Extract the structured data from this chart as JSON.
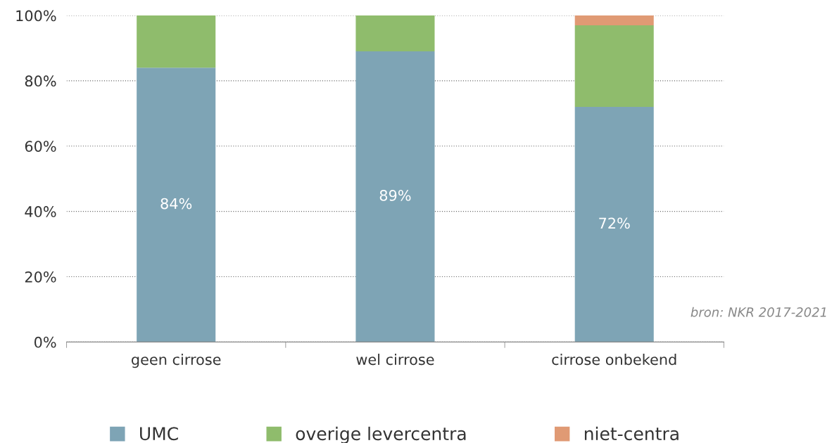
{
  "chart_data": {
    "type": "bar",
    "stacked": true,
    "categories": [
      "geen cirrose",
      "wel cirrose",
      "cirrose onbekend"
    ],
    "series": [
      {
        "name": "UMC",
        "color": "#7ea4b5",
        "values": [
          84,
          89,
          72
        ],
        "value_labels": [
          "84%",
          "89%",
          "72%"
        ]
      },
      {
        "name": "overige levercentra",
        "color": "#8fbc6c",
        "values": [
          16,
          11,
          25
        ]
      },
      {
        "name": "niet-centra",
        "color": "#e09a74",
        "values": [
          0,
          0,
          3
        ]
      }
    ],
    "ylim": [
      0,
      100
    ],
    "yticks": [
      {
        "value": 0,
        "label": "0%"
      },
      {
        "value": 20,
        "label": "20%"
      },
      {
        "value": 40,
        "label": "40%"
      },
      {
        "value": 60,
        "label": "60%"
      },
      {
        "value": 80,
        "label": "80%"
      },
      {
        "value": 100,
        "label": "100%"
      }
    ],
    "grid": "y",
    "legend": "bottom",
    "annotations": [
      "bron: NKR 2017-2021"
    ]
  }
}
